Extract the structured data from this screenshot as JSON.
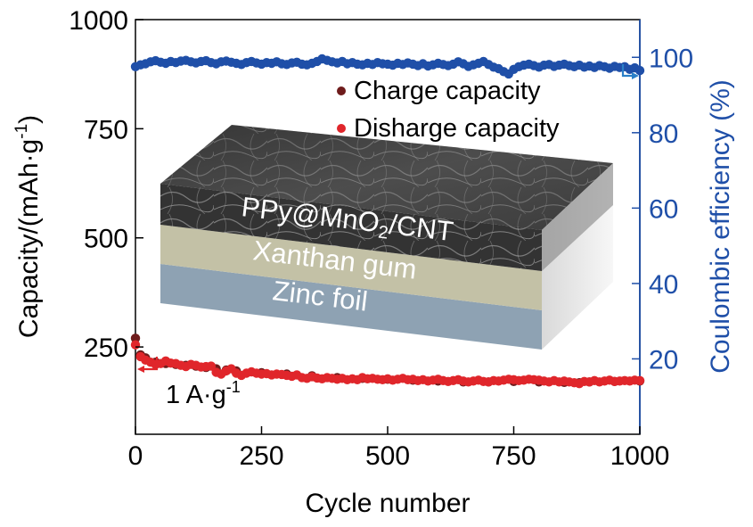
{
  "chart_data": {
    "type": "scatter",
    "x_axis": {
      "label": "Cycle number",
      "range": [
        0,
        1000
      ],
      "ticks": [
        "0",
        "250",
        "500",
        "750",
        "1000"
      ]
    },
    "y_axis_left": {
      "label": "Capacity/(mAh·g",
      "label_sup": "-1",
      "label_end": ")",
      "range": [
        50,
        1000
      ],
      "ticks": [
        "250",
        "500",
        "750",
        "1000"
      ],
      "color": "#000000"
    },
    "y_axis_right": {
      "label": "Coulombic efficiency (%)",
      "range": [
        0,
        110
      ],
      "ticks": [
        "20",
        "40",
        "60",
        "80",
        "100"
      ],
      "color": "#1f4fa8"
    },
    "legend": {
      "placement": "top-right",
      "entries": [
        {
          "label": "Charge capacity",
          "color": "#6e1c1c"
        },
        {
          "label": "Disharge capacity",
          "color": "#e0262b"
        }
      ]
    },
    "annotation": {
      "text": "1 A·g",
      "sup": "-1"
    },
    "inset": {
      "layers": [
        {
          "label": "PPy@MnO",
          "sub": "2",
          "label_end": "/CNT"
        },
        {
          "label": "Xanthan gum"
        },
        {
          "label": "Zinc  foil"
        }
      ]
    },
    "series": [
      {
        "name": "Charge capacity",
        "axis": "left",
        "color": "#6e1c1c",
        "x": [
          0,
          10,
          20,
          40,
          60,
          80,
          100,
          120,
          140,
          160,
          180,
          200,
          250,
          300,
          350,
          400,
          450,
          500,
          550,
          600,
          650,
          700,
          750,
          800,
          850,
          880,
          900,
          950,
          1000
        ],
        "y": [
          270,
          232,
          225,
          215,
          212,
          210,
          208,
          206,
          203,
          200,
          197,
          195,
          191,
          188,
          184,
          180,
          178,
          176,
          174,
          172,
          170,
          170,
          171,
          170,
          169,
          168,
          170,
          171,
          172
        ]
      },
      {
        "name": "Disharge capacity",
        "axis": "left",
        "color": "#e0262b",
        "x": [
          0,
          10,
          20,
          30,
          40,
          50,
          60,
          70,
          80,
          90,
          100,
          110,
          120,
          130,
          140,
          150,
          160,
          170,
          180,
          190,
          200,
          210,
          220,
          230,
          240,
          250,
          260,
          270,
          280,
          290,
          300,
          310,
          320,
          330,
          340,
          350,
          360,
          370,
          380,
          390,
          400,
          410,
          420,
          430,
          440,
          450,
          460,
          470,
          480,
          490,
          500,
          510,
          520,
          530,
          540,
          550,
          560,
          570,
          580,
          590,
          600,
          610,
          620,
          630,
          640,
          650,
          660,
          670,
          680,
          690,
          700,
          710,
          720,
          730,
          740,
          750,
          760,
          770,
          780,
          790,
          800,
          810,
          820,
          830,
          840,
          850,
          860,
          870,
          880,
          890,
          900,
          910,
          920,
          930,
          940,
          950,
          960,
          970,
          980,
          990,
          1000
        ],
        "y": [
          255,
          228,
          220,
          215,
          210,
          212,
          218,
          213,
          212,
          208,
          205,
          210,
          208,
          204,
          205,
          206,
          192,
          188,
          195,
          200,
          190,
          185,
          190,
          193,
          190,
          188,
          189,
          186,
          188,
          187,
          185,
          183,
          186,
          180,
          178,
          182,
          179,
          177,
          180,
          178,
          176,
          178,
          175,
          177,
          175,
          180,
          177,
          178,
          176,
          175,
          177,
          174,
          176,
          178,
          175,
          176,
          173,
          175,
          172,
          174,
          176,
          173,
          171,
          173,
          175,
          172,
          170,
          172,
          174,
          171,
          170,
          173,
          172,
          174,
          176,
          175,
          173,
          174,
          176,
          175,
          174,
          172,
          170,
          173,
          170,
          172,
          170,
          168,
          166,
          171,
          170,
          173,
          170,
          172,
          174,
          171,
          172,
          173,
          172,
          174,
          173
        ]
      },
      {
        "name": "Coulombic efficiency",
        "axis": "right",
        "color": "#1f4fa8",
        "x": [
          0,
          10,
          20,
          30,
          40,
          50,
          60,
          70,
          80,
          90,
          100,
          110,
          120,
          130,
          140,
          150,
          160,
          170,
          180,
          190,
          200,
          210,
          220,
          230,
          240,
          250,
          260,
          270,
          280,
          290,
          300,
          310,
          320,
          330,
          340,
          350,
          360,
          370,
          380,
          390,
          400,
          410,
          420,
          430,
          440,
          450,
          460,
          470,
          480,
          490,
          500,
          510,
          520,
          530,
          540,
          550,
          560,
          570,
          580,
          590,
          600,
          610,
          620,
          630,
          640,
          650,
          660,
          670,
          680,
          690,
          700,
          710,
          720,
          730,
          740,
          750,
          760,
          770,
          780,
          790,
          800,
          810,
          820,
          830,
          840,
          850,
          860,
          870,
          880,
          890,
          900,
          910,
          920,
          930,
          940,
          950,
          960,
          970,
          980,
          990,
          1000
        ],
        "y": [
          97.5,
          98.0,
          98.3,
          98.8,
          99.1,
          98.7,
          98.4,
          98.9,
          98.6,
          99.0,
          99.2,
          98.8,
          98.5,
          98.9,
          99.1,
          98.6,
          98.3,
          98.8,
          99.0,
          98.7,
          98.4,
          98.1,
          98.6,
          98.9,
          98.5,
          98.2,
          98.6,
          98.4,
          98.8,
          98.3,
          98.1,
          98.5,
          98.7,
          98.2,
          98.0,
          98.4,
          98.9,
          99.6,
          99.2,
          98.8,
          98.5,
          98.9,
          98.3,
          98.6,
          98.2,
          98.0,
          98.4,
          98.1,
          98.6,
          98.3,
          98.2,
          97.9,
          98.4,
          98.1,
          98.5,
          98.2,
          97.8,
          98.3,
          97.7,
          98.0,
          98.4,
          98.1,
          97.8,
          98.2,
          98.8,
          98.3,
          97.6,
          98.0,
          98.4,
          98.9,
          98.1,
          97.4,
          97.0,
          96.2,
          95.6,
          96.8,
          97.5,
          97.9,
          98.2,
          97.8,
          97.4,
          97.9,
          98.1,
          97.6,
          97.9,
          98.2,
          97.8,
          97.5,
          97.9,
          97.4,
          97.7,
          97.3,
          97.8,
          97.5,
          97.1,
          97.6,
          97.3,
          97.5,
          96.8,
          97.2,
          96.5
        ]
      }
    ]
  }
}
